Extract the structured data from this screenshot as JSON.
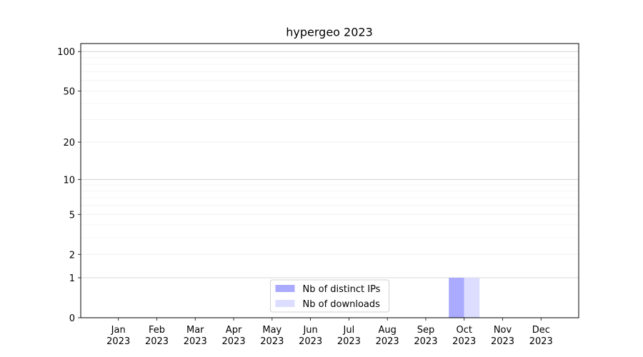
{
  "chart_data": {
    "type": "bar",
    "title": "hypergeo 2023",
    "categories": [
      "Jan 2023",
      "Feb 2023",
      "Mar 2023",
      "Apr 2023",
      "May 2023",
      "Jun 2023",
      "Jul 2023",
      "Aug 2023",
      "Sep 2023",
      "Oct 2023",
      "Nov 2023",
      "Dec 2023"
    ],
    "series": [
      {
        "name": "Nb of distinct IPs",
        "color": "#aaaaff",
        "values": [
          0,
          0,
          0,
          0,
          0,
          0,
          0,
          0,
          0,
          1,
          0,
          0
        ]
      },
      {
        "name": "Nb of downloads",
        "color": "#ddddff",
        "values": [
          0,
          0,
          0,
          0,
          0,
          0,
          0,
          0,
          0,
          1,
          0,
          0
        ]
      }
    ],
    "yscale": "log1p",
    "ylim": [
      0,
      115
    ],
    "yticks": [
      0,
      1,
      2,
      5,
      10,
      20,
      50,
      100
    ],
    "yminorticks": [
      3,
      4,
      6,
      7,
      8,
      9,
      30,
      40,
      60,
      70,
      80,
      90
    ],
    "grid": true,
    "legend": "lower center"
  }
}
